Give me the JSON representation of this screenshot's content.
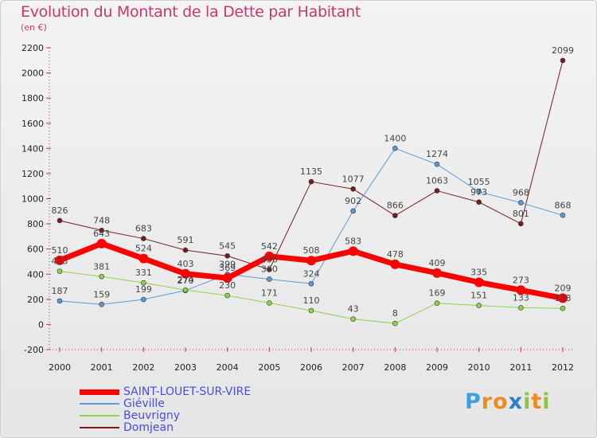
{
  "header": {
    "title": "Evolution du Montant de la Dette par Habitant",
    "subtitle": "(en €)"
  },
  "logo": {
    "letters": [
      "P",
      "r",
      "o",
      "x",
      "i",
      "t",
      "i"
    ],
    "colors": [
      "#3aa0e0",
      "#f08a1c",
      "#f08a1c",
      "#2a7fd0",
      "#8cc63f",
      "#f08a1c",
      "#8cc63f"
    ]
  },
  "chart_data": {
    "type": "line",
    "title": "Evolution du Montant de la Dette par Habitant",
    "subtitle": "(en €)",
    "xlabel": "",
    "ylabel": "",
    "ylim": [
      -200,
      2200
    ],
    "yticks": [
      -200,
      0,
      200,
      400,
      600,
      800,
      1000,
      1200,
      1400,
      1600,
      1800,
      2000,
      2200
    ],
    "grid": false,
    "legend_position": "bottom-left",
    "x": [
      "2000",
      "2001",
      "2002",
      "2003",
      "2004",
      "2005",
      "2006",
      "2007",
      "2008",
      "2009",
      "2010",
      "2011",
      "2012"
    ],
    "series": [
      {
        "name": "SAINT-LOUET-SUR-VIRE",
        "color": "#ff0000",
        "width": 7,
        "values": [
          510,
          643,
          524,
          403,
          369,
          542,
          508,
          583,
          478,
          409,
          335,
          273,
          209
        ],
        "labels": [
          "510",
          "643",
          "524",
          "403",
          "369",
          "542",
          "508",
          "583",
          "478",
          "409",
          "335",
          "273",
          "209"
        ]
      },
      {
        "name": "Giéville",
        "color": "#5b9bd5",
        "width": 1,
        "values": [
          187,
          159,
          199,
          270,
          399,
          360,
          324,
          902,
          1400,
          1274,
          1055,
          968,
          868
        ],
        "labels": [
          "187",
          "159",
          "199",
          "270",
          "399",
          "360",
          "324",
          "902",
          "1400",
          "1274",
          "1055",
          "968",
          "868"
        ]
      },
      {
        "name": "Beuvrigny",
        "color": "#8ed44a",
        "width": 1,
        "values": [
          423,
          381,
          331,
          274,
          230,
          171,
          110,
          43,
          8,
          169,
          151,
          133,
          128
        ],
        "labels": [
          "423",
          "381",
          "331",
          "274",
          "230",
          "171",
          "110",
          "43",
          "8",
          "169",
          "151",
          "133",
          "128"
        ]
      },
      {
        "name": "Domjean",
        "color": "#7a1a1a",
        "width": 1,
        "values": [
          826,
          748,
          683,
          591,
          545,
          436,
          1135,
          1077,
          866,
          1063,
          973,
          801,
          2099
        ],
        "labels": [
          "826",
          "748",
          "683",
          "591",
          "545",
          "436",
          "1135",
          "1077",
          "866",
          "1063",
          "973",
          "801",
          "2099"
        ]
      }
    ]
  }
}
